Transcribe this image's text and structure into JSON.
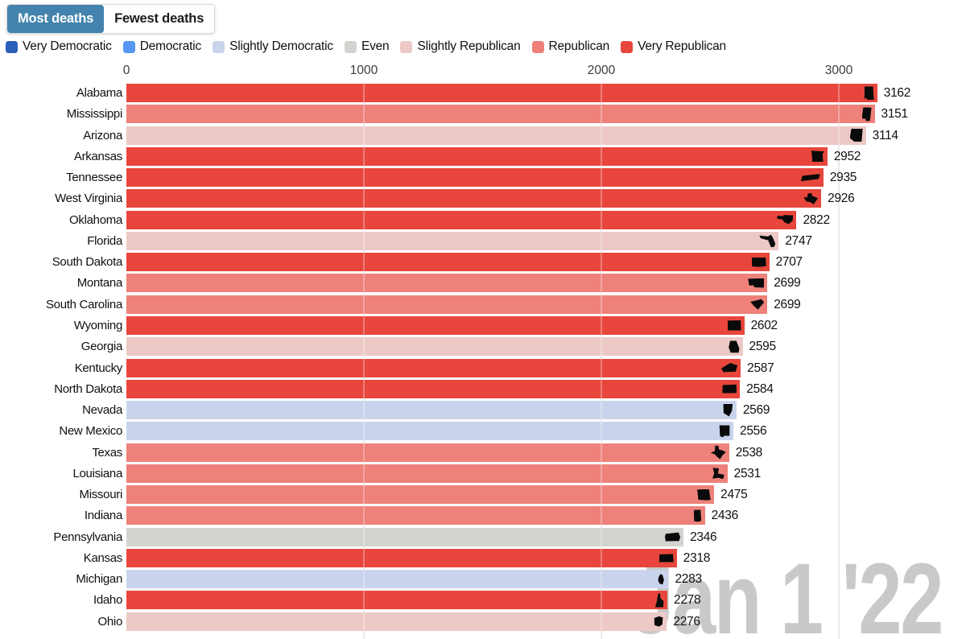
{
  "tabs": {
    "items": [
      {
        "label": "Most deaths",
        "active": true
      },
      {
        "label": "Fewest deaths",
        "active": false
      }
    ]
  },
  "legend": {
    "items": [
      {
        "label": "Very Democratic",
        "color": "#2b5fba"
      },
      {
        "label": "Democratic",
        "color": "#5697f3"
      },
      {
        "label": "Slightly Democratic",
        "color": "#c9d4ec"
      },
      {
        "label": "Even",
        "color": "#d2d4d0"
      },
      {
        "label": "Slightly Republican",
        "color": "#ecc9c6"
      },
      {
        "label": "Republican",
        "color": "#ee817a"
      },
      {
        "label": "Very Republican",
        "color": "#e8463c"
      }
    ]
  },
  "watermark": {
    "text": "Jan 1 '22"
  },
  "chart_data": {
    "type": "bar",
    "orientation": "horizontal",
    "x_ticks": [
      0,
      1000,
      2000,
      3000
    ],
    "xlim": [
      0,
      3400
    ],
    "grid": true,
    "legend_position": "top",
    "rows": [
      {
        "state": "Alabama",
        "value": 3162,
        "category": "Very Republican"
      },
      {
        "state": "Mississippi",
        "value": 3151,
        "category": "Republican"
      },
      {
        "state": "Arizona",
        "value": 3114,
        "category": "Slightly Republican"
      },
      {
        "state": "Arkansas",
        "value": 2952,
        "category": "Very Republican"
      },
      {
        "state": "Tennessee",
        "value": 2935,
        "category": "Very Republican"
      },
      {
        "state": "West Virginia",
        "value": 2926,
        "category": "Very Republican"
      },
      {
        "state": "Oklahoma",
        "value": 2822,
        "category": "Very Republican"
      },
      {
        "state": "Florida",
        "value": 2747,
        "category": "Slightly Republican"
      },
      {
        "state": "South Dakota",
        "value": 2707,
        "category": "Very Republican"
      },
      {
        "state": "Montana",
        "value": 2699,
        "category": "Republican"
      },
      {
        "state": "South Carolina",
        "value": 2699,
        "category": "Republican"
      },
      {
        "state": "Wyoming",
        "value": 2602,
        "category": "Very Republican"
      },
      {
        "state": "Georgia",
        "value": 2595,
        "category": "Slightly Republican"
      },
      {
        "state": "Kentucky",
        "value": 2587,
        "category": "Very Republican"
      },
      {
        "state": "North Dakota",
        "value": 2584,
        "category": "Very Republican"
      },
      {
        "state": "Nevada",
        "value": 2569,
        "category": "Slightly Democratic"
      },
      {
        "state": "New Mexico",
        "value": 2556,
        "category": "Slightly Democratic"
      },
      {
        "state": "Texas",
        "value": 2538,
        "category": "Republican"
      },
      {
        "state": "Louisiana",
        "value": 2531,
        "category": "Republican"
      },
      {
        "state": "Missouri",
        "value": 2475,
        "category": "Republican"
      },
      {
        "state": "Indiana",
        "value": 2436,
        "category": "Republican"
      },
      {
        "state": "Pennsylvania",
        "value": 2346,
        "category": "Even"
      },
      {
        "state": "Kansas",
        "value": 2318,
        "category": "Very Republican"
      },
      {
        "state": "Michigan",
        "value": 2283,
        "category": "Slightly Democratic"
      },
      {
        "state": "Idaho",
        "value": 2278,
        "category": "Very Republican"
      },
      {
        "state": "Ohio",
        "value": 2276,
        "category": "Slightly Republican"
      }
    ]
  }
}
